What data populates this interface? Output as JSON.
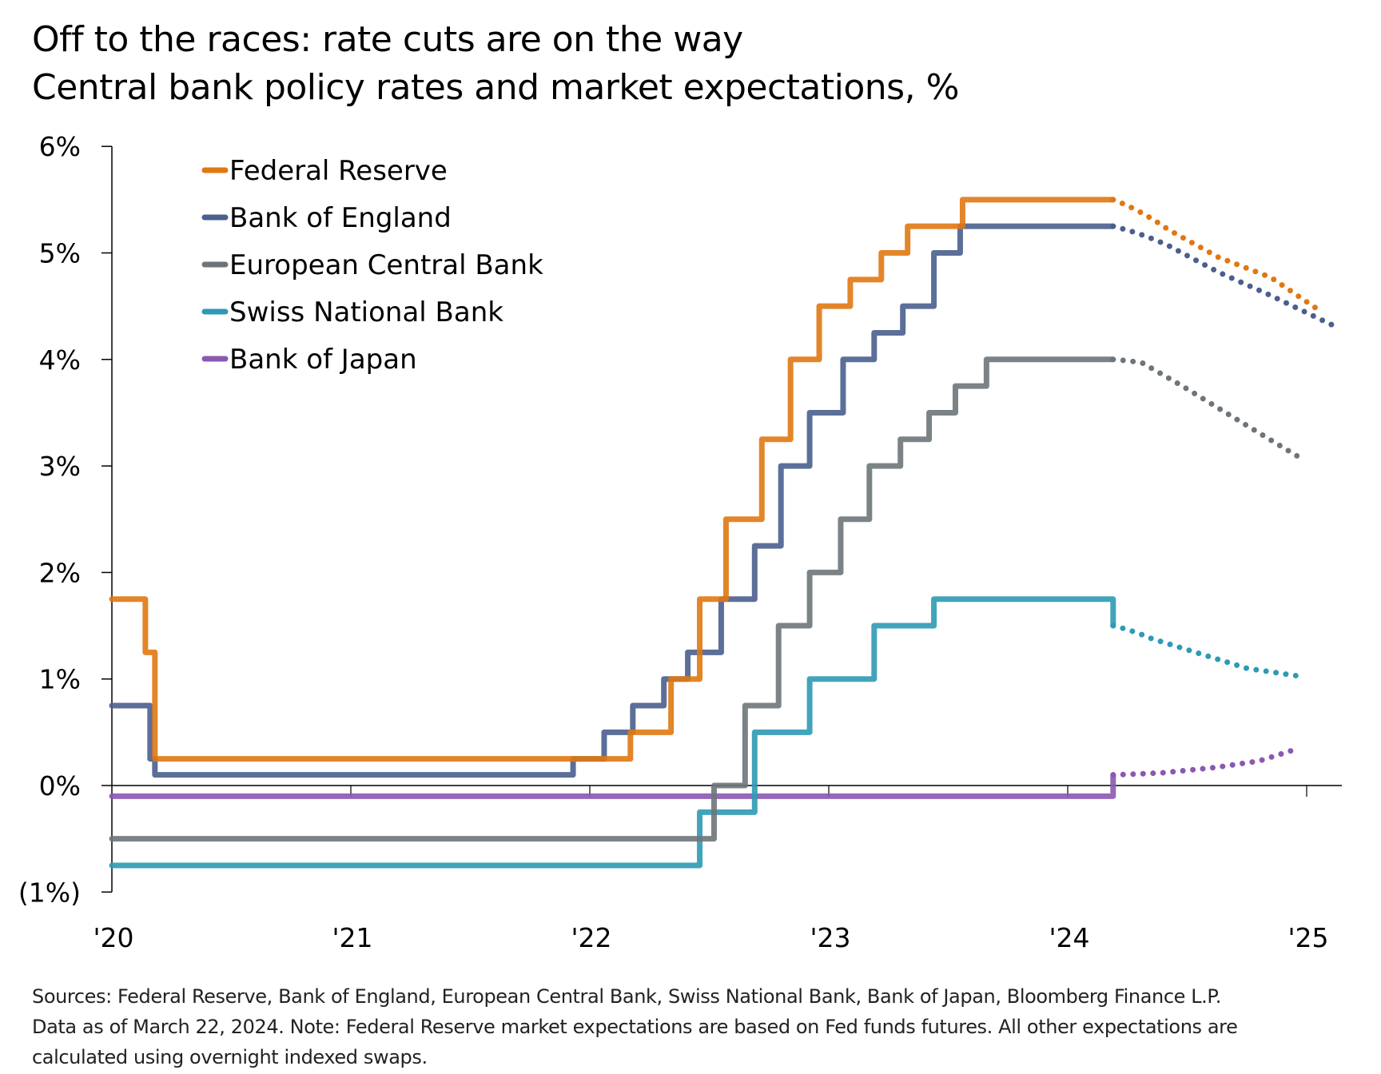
{
  "header": {
    "title": "Off to the races: rate cuts are on the way",
    "subtitle": "Central bank policy rates and market expectations, %"
  },
  "footnote": {
    "lines": [
      "Sources: Federal Reserve, Bank of England, European Central Bank, Swiss National Bank, Bank of Japan, Bloomberg Finance L.P.",
      "Data as of March 22, 2024. Note: Federal Reserve market expectations are based on Fed funds futures. All other expectations are",
      "calculated using overnight indexed swaps."
    ]
  },
  "chart_data": {
    "type": "line",
    "title": "Off to the races: rate cuts are on the way",
    "subtitle": "Central bank policy rates and market expectations, %",
    "xlabel": "",
    "ylabel": "",
    "xlim": [
      2020,
      2025.15
    ],
    "ylim": [
      -1,
      6
    ],
    "grid": false,
    "legend_position": "top-left",
    "x_ticks": [
      2020,
      2021,
      2022,
      2023,
      2024,
      2025
    ],
    "x_tick_labels": [
      "'20",
      "'21",
      "'22",
      "'23",
      "'24",
      "'25"
    ],
    "y_ticks": [
      -1,
      0,
      1,
      2,
      3,
      4,
      5,
      6
    ],
    "y_tick_labels": [
      "(1%)",
      "0%",
      "1%",
      "2%",
      "3%",
      "4%",
      "5%",
      "6%"
    ],
    "projection_start": 2024.19,
    "series": [
      {
        "name": "Federal Reserve",
        "color": "#E07812",
        "steps": [
          [
            2020.0,
            1.75
          ],
          [
            2020.14,
            1.25
          ],
          [
            2020.18,
            0.25
          ],
          [
            2022.17,
            0.5
          ],
          [
            2022.34,
            1.0
          ],
          [
            2022.46,
            1.75
          ],
          [
            2022.57,
            2.5
          ],
          [
            2022.72,
            3.25
          ],
          [
            2022.84,
            4.0
          ],
          [
            2022.96,
            4.5
          ],
          [
            2023.09,
            4.75
          ],
          [
            2023.22,
            5.0
          ],
          [
            2023.33,
            5.25
          ],
          [
            2023.56,
            5.5
          ]
        ],
        "actual_end": [
          2024.19,
          5.5
        ],
        "expectations": [
          [
            2024.19,
            5.5
          ],
          [
            2024.42,
            5.22
          ],
          [
            2024.63,
            4.96
          ],
          [
            2024.85,
            4.77
          ],
          [
            2025.04,
            4.48
          ]
        ]
      },
      {
        "name": "Bank of England",
        "color": "#4A5F8E",
        "steps": [
          [
            2020.0,
            0.75
          ],
          [
            2020.16,
            0.25
          ],
          [
            2020.18,
            0.1
          ],
          [
            2021.93,
            0.25
          ],
          [
            2022.06,
            0.5
          ],
          [
            2022.18,
            0.75
          ],
          [
            2022.31,
            1.0
          ],
          [
            2022.41,
            1.25
          ],
          [
            2022.55,
            1.75
          ],
          [
            2022.69,
            2.25
          ],
          [
            2022.8,
            3.0
          ],
          [
            2022.92,
            3.5
          ],
          [
            2023.06,
            4.0
          ],
          [
            2023.19,
            4.25
          ],
          [
            2023.31,
            4.5
          ],
          [
            2023.44,
            5.0
          ],
          [
            2023.55,
            5.25
          ]
        ],
        "actual_end": [
          2024.19,
          5.25
        ],
        "expectations": [
          [
            2024.19,
            5.25
          ],
          [
            2024.42,
            5.07
          ],
          [
            2024.63,
            4.82
          ],
          [
            2024.85,
            4.6
          ],
          [
            2025.11,
            4.32
          ]
        ]
      },
      {
        "name": "European Central Bank",
        "color": "#6E757A",
        "steps": [
          [
            2020.0,
            -0.5
          ],
          [
            2022.52,
            0.0
          ],
          [
            2022.65,
            0.75
          ],
          [
            2022.79,
            1.5
          ],
          [
            2022.92,
            2.0
          ],
          [
            2023.05,
            2.5
          ],
          [
            2023.17,
            3.0
          ],
          [
            2023.3,
            3.25
          ],
          [
            2023.42,
            3.5
          ],
          [
            2023.53,
            3.75
          ],
          [
            2023.66,
            4.0
          ]
        ],
        "actual_end": [
          2024.19,
          4.0
        ],
        "expectations": [
          [
            2024.19,
            4.0
          ],
          [
            2024.31,
            3.97
          ],
          [
            2024.48,
            3.75
          ],
          [
            2024.72,
            3.42
          ],
          [
            2024.97,
            3.08
          ]
        ]
      },
      {
        "name": "Swiss National Bank",
        "color": "#2E9AB4",
        "steps": [
          [
            2020.0,
            -0.75
          ],
          [
            2022.46,
            -0.25
          ],
          [
            2022.69,
            0.5
          ],
          [
            2022.92,
            1.0
          ],
          [
            2023.19,
            1.5
          ],
          [
            2023.44,
            1.75
          ]
        ],
        "actual_end": [
          2024.19,
          1.5
        ],
        "expectations": [
          [
            2024.19,
            1.5
          ],
          [
            2024.35,
            1.38
          ],
          [
            2024.55,
            1.24
          ],
          [
            2024.75,
            1.1
          ],
          [
            2024.96,
            1.03
          ]
        ]
      },
      {
        "name": "Bank of Japan",
        "color": "#8A58B0",
        "steps": [
          [
            2020.0,
            -0.1
          ],
          [
            2024.19,
            0.1
          ]
        ],
        "actual_end": [
          2024.19,
          0.1
        ],
        "expectations": [
          [
            2024.19,
            0.1
          ],
          [
            2024.4,
            0.12
          ],
          [
            2024.62,
            0.17
          ],
          [
            2024.8,
            0.23
          ],
          [
            2024.94,
            0.33
          ]
        ]
      }
    ]
  }
}
